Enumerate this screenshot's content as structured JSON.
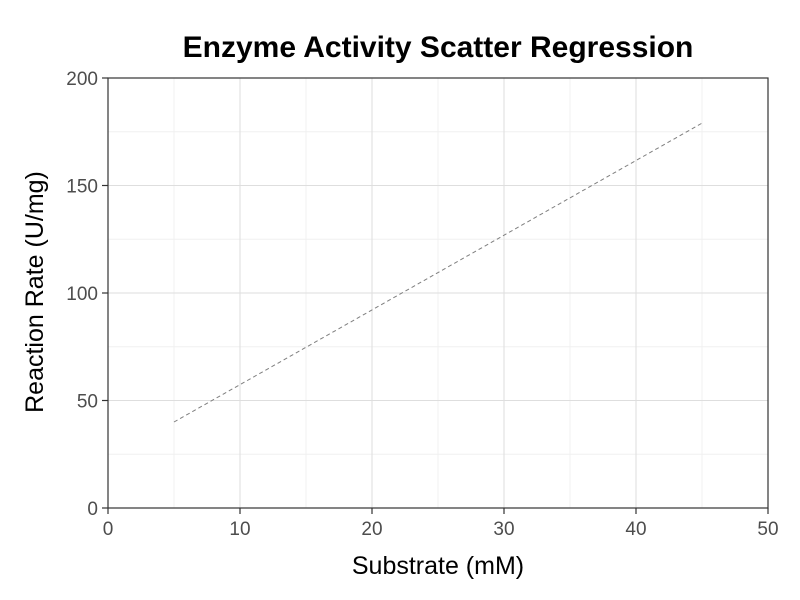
{
  "chart_data": {
    "type": "line",
    "title": "Enzyme Activity Scatter Regression",
    "xlabel": "Substrate (mM)",
    "ylabel": "Reaction Rate (U/mg)",
    "xlim": [
      0,
      50
    ],
    "ylim": [
      0,
      200
    ],
    "x_ticks": [
      0,
      10,
      20,
      30,
      40,
      50
    ],
    "y_ticks": [
      0,
      50,
      100,
      150,
      200
    ],
    "x_tick_labels": [
      "0",
      "10",
      "20",
      "30",
      "40",
      "50"
    ],
    "y_tick_labels": [
      "0",
      "50",
      "100",
      "150",
      "200"
    ],
    "grid": true,
    "series": [
      {
        "style": "dashed",
        "color": "#7f7f7f",
        "x": [
          5,
          45
        ],
        "y": [
          40,
          179
        ]
      }
    ]
  }
}
